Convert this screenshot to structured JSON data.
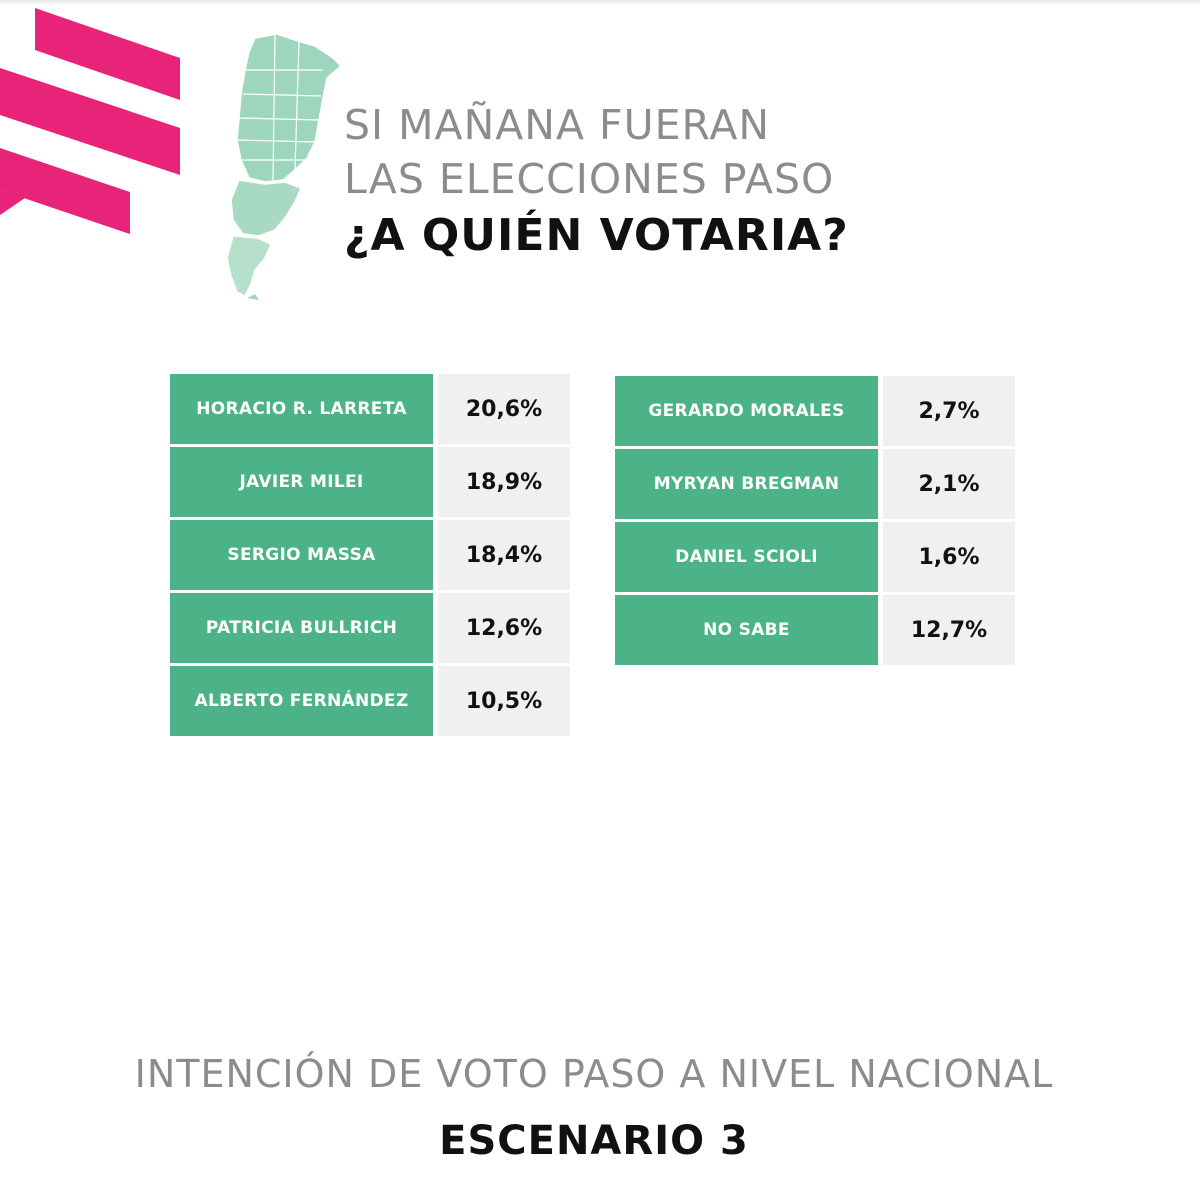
{
  "headline": {
    "line1": "SI MAÑANA FUERAN",
    "line2": "LAS ELECCIONES PASO",
    "question": "¿A QUIÉN VOTARIA?"
  },
  "colors": {
    "accent_pink": "#e8237a",
    "cell_green": "#4cb388",
    "map_green": "#9ed6bd",
    "value_bg": "#f0f0f0"
  },
  "chart_data": {
    "type": "table",
    "title": "",
    "rows_left": [
      {
        "name": "HORACIO R. LARRETA",
        "value": "20,6%"
      },
      {
        "name": "JAVIER MILEI",
        "value": "18,9%"
      },
      {
        "name": "SERGIO MASSA",
        "value": "18,4%"
      },
      {
        "name": "PATRICIA BULLRICH",
        "value": "12,6%"
      },
      {
        "name": "ALBERTO FERNÁNDEZ",
        "value": "10,5%"
      }
    ],
    "rows_right": [
      {
        "name": "GERARDO MORALES",
        "value": "2,7%"
      },
      {
        "name": "MYRYAN BREGMAN",
        "value": "2,1%"
      },
      {
        "name": "DANIEL SCIOLI",
        "value": "1,6%"
      },
      {
        "name": "NO SABE",
        "value": "12,7%"
      }
    ]
  },
  "footer": {
    "subtitle": "INTENCIÓN DE VOTO PASO A NIVEL NACIONAL",
    "title": "ESCENARIO 3"
  }
}
